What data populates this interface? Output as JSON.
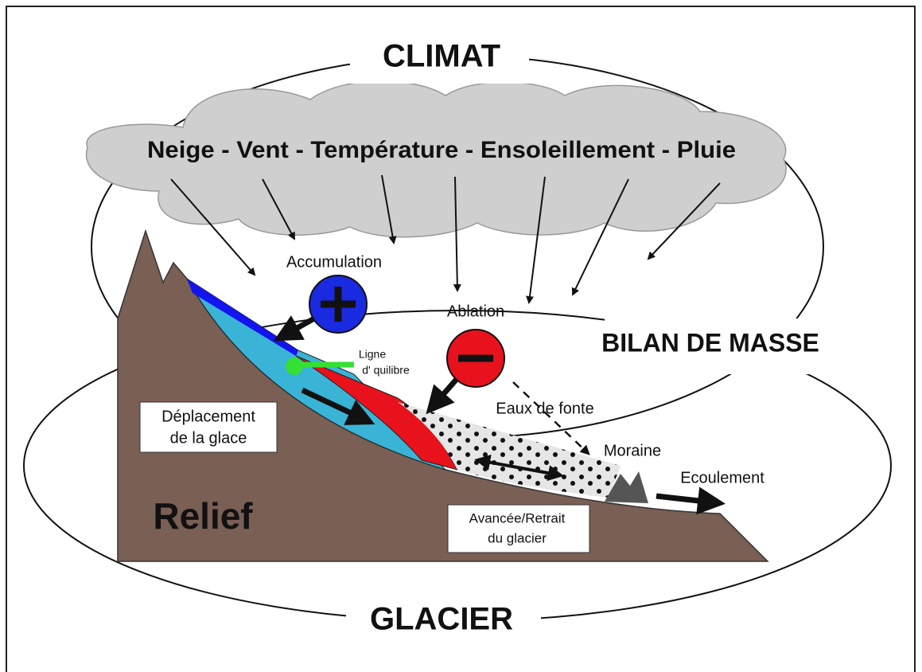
{
  "title": "CLIMAT",
  "climate_factors": "Neige - Vent - Température - Ensoleillement - Pluie",
  "mass_balance": "BILAN DE MASSE",
  "bottom_title": "GLACIER",
  "labels": {
    "accumulation": "Accumulation",
    "ablation": "Ablation",
    "equilibrium_line": [
      "Ligne",
      "d' quilibre"
    ],
    "ice_movement": [
      "Déplacement",
      "de la glace"
    ],
    "meltwater": "Eaux de fonte",
    "moraine": "Moraine",
    "runoff": "Ecoulement",
    "relief": "Relief",
    "glacier_change": [
      "Avancée/Retrait",
      "du glacier"
    ]
  }
}
